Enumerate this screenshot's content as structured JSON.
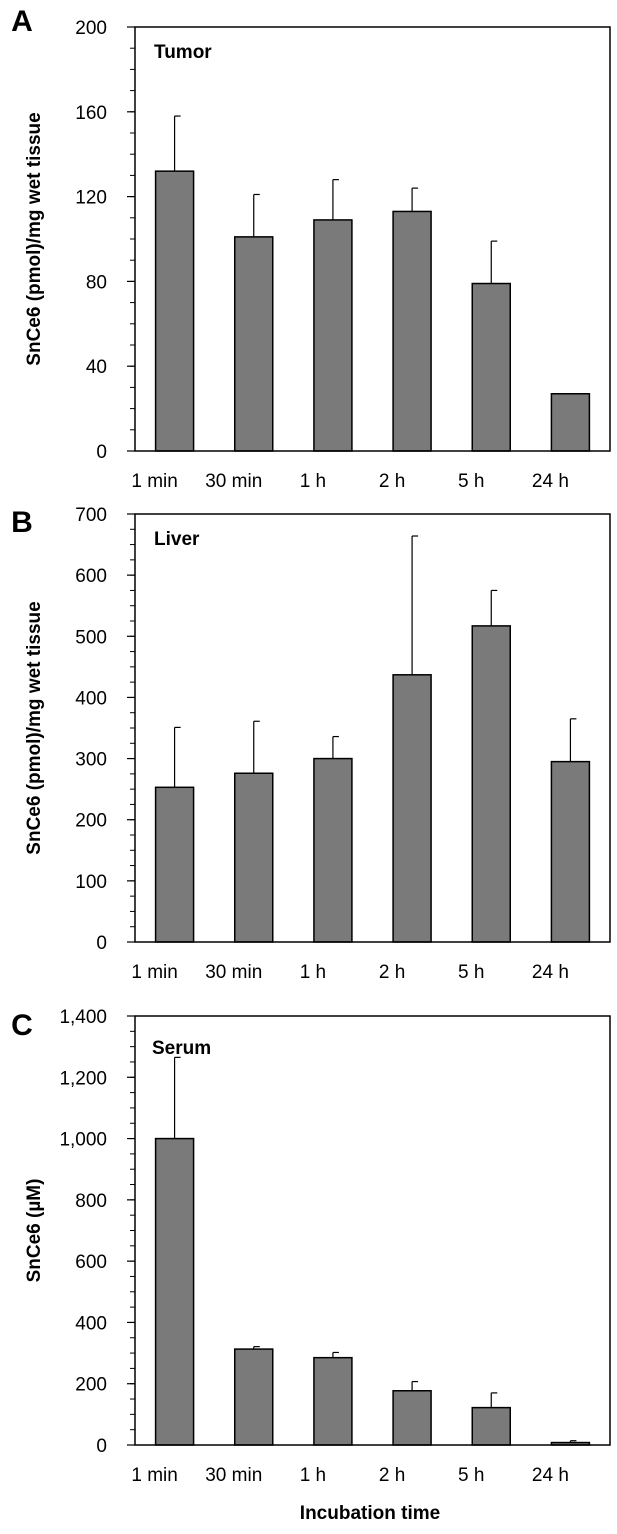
{
  "figure": {
    "xlabel": "Incubation time"
  },
  "chart_data": [
    {
      "type": "bar",
      "panel_letter": "A",
      "title": "Tumor",
      "ylabel": "SnCe6 (pmol)/mg  wet tissue",
      "xlabel": "",
      "categories": [
        "1 min",
        "30 min",
        "1 h",
        "2 h",
        "5 h",
        "24 h"
      ],
      "values": [
        132,
        101,
        109,
        113,
        79,
        27
      ],
      "error": [
        26,
        20,
        19,
        11,
        20,
        0
      ],
      "ylim": [
        0,
        200
      ],
      "yticks": [
        0,
        40,
        80,
        120,
        160,
        200
      ],
      "ytick_labels": [
        "0",
        "40",
        "80",
        "120",
        "160",
        "200"
      ],
      "minor_step": 10,
      "grid": false,
      "bar_color": "#7a7a7a"
    },
    {
      "type": "bar",
      "panel_letter": "B",
      "title": "Liver",
      "ylabel": "SnCe6 (pmol)/mg  wet tissue",
      "xlabel": "",
      "categories": [
        "1 min",
        "30 min",
        "1 h",
        "2 h",
        "5 h",
        "24 h"
      ],
      "values": [
        253,
        276,
        300,
        437,
        517,
        295
      ],
      "error": [
        98,
        85,
        36,
        227,
        58,
        70
      ],
      "ylim": [
        0,
        700
      ],
      "yticks": [
        0,
        100,
        200,
        300,
        400,
        500,
        600,
        700
      ],
      "ytick_labels": [
        "0",
        "100",
        "200",
        "300",
        "400",
        "500",
        "600",
        "700"
      ],
      "minor_step": 25,
      "grid": false,
      "bar_color": "#7a7a7a"
    },
    {
      "type": "bar",
      "panel_letter": "C",
      "title": "Serum",
      "ylabel": "SnCe6 (µM)",
      "xlabel": "Incubation time",
      "categories": [
        "1 min",
        "30 min",
        "1 h",
        "2 h",
        "5 h",
        "24 h"
      ],
      "values": [
        1000,
        313,
        285,
        177,
        122,
        8
      ],
      "error": [
        265,
        8,
        17,
        30,
        48,
        6
      ],
      "ylim": [
        0,
        1400
      ],
      "yticks": [
        0,
        200,
        400,
        600,
        800,
        1000,
        1200,
        1400
      ],
      "ytick_labels": [
        "0",
        "200",
        "400",
        "600",
        "800",
        "1,000",
        "1,200",
        "1,400"
      ],
      "minor_step": 50,
      "grid": false,
      "bar_color": "#7a7a7a"
    }
  ]
}
